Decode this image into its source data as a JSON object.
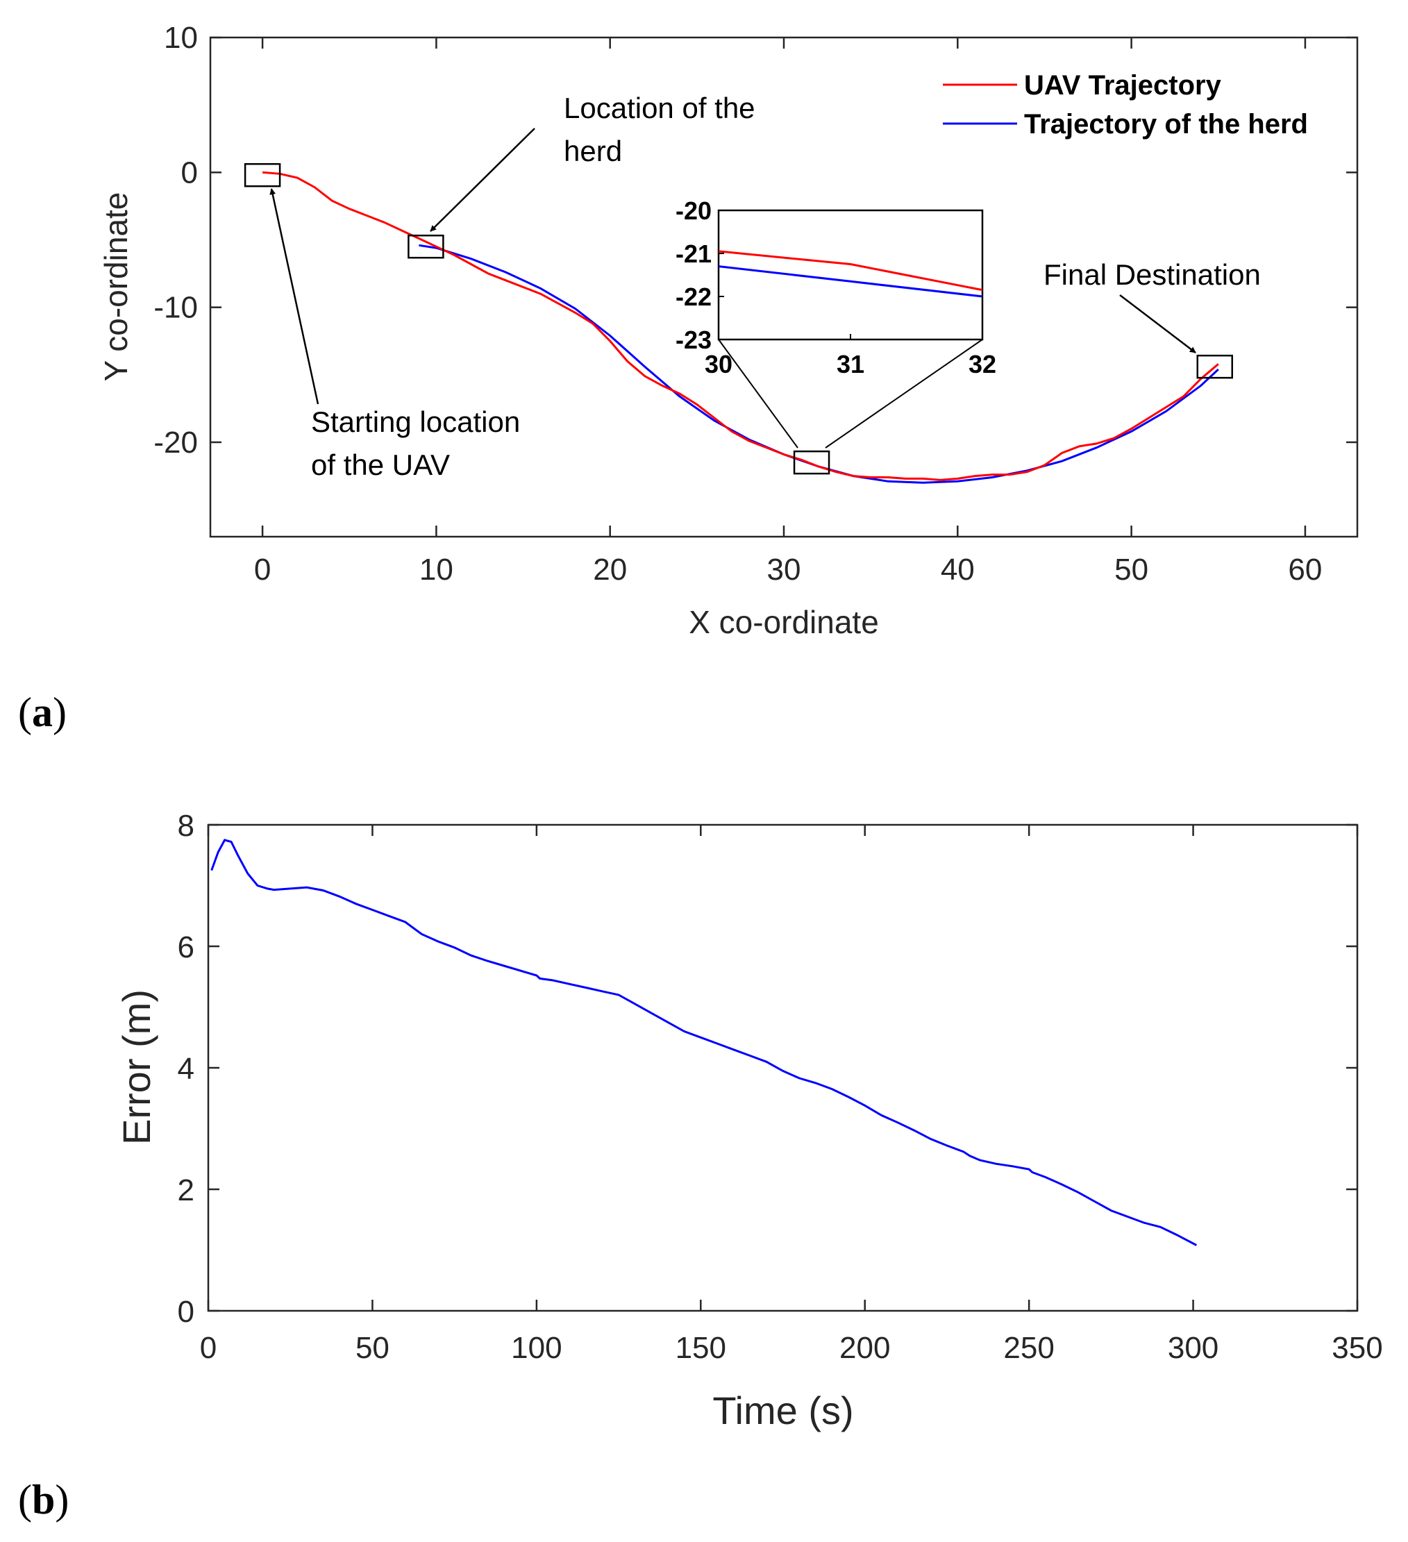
{
  "panels": {
    "a_label": "a",
    "b_label": "b"
  },
  "colors": {
    "uav": "#ff0000",
    "herd": "#0000ff",
    "error": "#0000ff",
    "axis": "#262626"
  },
  "chart_data": [
    {
      "type": "line",
      "panel": "a",
      "xlabel": "X co-ordinate",
      "ylabel": "Y co-ordinate",
      "xlim": [
        -3,
        63
      ],
      "ylim": [
        -27,
        10
      ],
      "xticks": [
        "0",
        "10",
        "20",
        "30",
        "40",
        "50",
        "60"
      ],
      "yticks": [
        "10",
        "0",
        "-10",
        "-20"
      ],
      "legend": {
        "position": "top-right",
        "entries": [
          "UAV Trajectory",
          "Trajectory of the herd"
        ]
      },
      "series": [
        {
          "name": "UAV Trajectory",
          "color": "red",
          "x": [
            0,
            1,
            2,
            3,
            4,
            5,
            6,
            7,
            8,
            9,
            10,
            11,
            12,
            13,
            14,
            15,
            16,
            17,
            18,
            19,
            20,
            21,
            22,
            23,
            24,
            25,
            26,
            27,
            28,
            29,
            30,
            31,
            32,
            33,
            34,
            35,
            36,
            37,
            38,
            39,
            40,
            41,
            42,
            43,
            44,
            45,
            46,
            47,
            48,
            49,
            50,
            51,
            52,
            53,
            54,
            55
          ],
          "y": [
            0,
            -0.1,
            -0.4,
            -1.1,
            -2.1,
            -2.7,
            -3.2,
            -3.7,
            -4.3,
            -4.9,
            -5.5,
            -6.1,
            -6.8,
            -7.5,
            -8.0,
            -8.5,
            -9.0,
            -9.7,
            -10.4,
            -11.2,
            -12.5,
            -14.0,
            -15.1,
            -15.8,
            -16.4,
            -17.2,
            -18.2,
            -19.2,
            -19.9,
            -20.4,
            -20.9,
            -21.3,
            -21.8,
            -22.2,
            -22.5,
            -22.6,
            -22.6,
            -22.7,
            -22.7,
            -22.8,
            -22.7,
            -22.5,
            -22.4,
            -22.4,
            -22.2,
            -21.7,
            -20.8,
            -20.3,
            -20.1,
            -19.7,
            -19.0,
            -18.2,
            -17.4,
            -16.6,
            -15.3,
            -14.2
          ]
        },
        {
          "name": "Trajectory of the herd",
          "color": "blue",
          "x": [
            9,
            10,
            12,
            14,
            16,
            18,
            20,
            22,
            24,
            26,
            28,
            30,
            32,
            34,
            36,
            38,
            40,
            42,
            44,
            46,
            48,
            50,
            52,
            54,
            55
          ],
          "y": [
            -5.4,
            -5.6,
            -6.4,
            -7.4,
            -8.6,
            -10.1,
            -12.1,
            -14.4,
            -16.6,
            -18.4,
            -19.8,
            -20.9,
            -21.8,
            -22.5,
            -22.9,
            -23.0,
            -22.9,
            -22.6,
            -22.1,
            -21.4,
            -20.4,
            -19.2,
            -17.7,
            -15.8,
            -14.6
          ]
        }
      ],
      "markers": [
        {
          "x": 0,
          "y": -0.2
        },
        {
          "x": 9.4,
          "y": -5.5
        },
        {
          "x": 31.6,
          "y": -21.5
        },
        {
          "x": 54.8,
          "y": -14.4
        }
      ],
      "annotations": {
        "herd_location": {
          "line1": "Location of the",
          "line2": "herd"
        },
        "start_location": {
          "line1": "Starting location",
          "line2": "of the UAV"
        },
        "final_destination": "Final Destination"
      },
      "inset": {
        "xlim": [
          30,
          32
        ],
        "ylim": [
          -23,
          -20
        ],
        "xticks": [
          "30",
          "31",
          "32"
        ],
        "yticks": [
          "-20",
          "-21",
          "-22",
          "-23"
        ],
        "series": [
          {
            "name": "UAV Trajectory",
            "x": [
              30,
              31,
              32
            ],
            "y": [
              -20.95,
              -21.25,
              -21.85
            ]
          },
          {
            "name": "Trajectory of the herd",
            "x": [
              30,
              31,
              32
            ],
            "y": [
              -21.3,
              -21.65,
              -22.0
            ]
          }
        ]
      }
    },
    {
      "type": "line",
      "panel": "b",
      "xlabel": "Time (s)",
      "ylabel": "Error (m)",
      "xlim": [
        0,
        350
      ],
      "ylim": [
        0,
        8
      ],
      "xticks": [
        "0",
        "50",
        "100",
        "150",
        "200",
        "250",
        "300",
        "350"
      ],
      "yticks": [
        "0",
        "2",
        "4",
        "6",
        "8"
      ],
      "series": [
        {
          "name": "Error",
          "color": "blue",
          "x": [
            1,
            3,
            5,
            7,
            9,
            12,
            15,
            18,
            20,
            25,
            30,
            35,
            40,
            45,
            50,
            55,
            60,
            65,
            70,
            75,
            80,
            85,
            90,
            95,
            100,
            101,
            105,
            110,
            115,
            120,
            125,
            130,
            135,
            140,
            145,
            150,
            155,
            160,
            165,
            170,
            175,
            180,
            185,
            190,
            195,
            200,
            205,
            210,
            215,
            220,
            225,
            230,
            232,
            235,
            240,
            245,
            250,
            251,
            255,
            260,
            265,
            270,
            275,
            280,
            285,
            290,
            295,
            301
          ],
          "y": [
            7.25,
            7.55,
            7.75,
            7.72,
            7.5,
            7.2,
            7.0,
            6.95,
            6.93,
            6.95,
            6.97,
            6.92,
            6.82,
            6.7,
            6.6,
            6.5,
            6.4,
            6.2,
            6.08,
            5.98,
            5.85,
            5.76,
            5.68,
            5.6,
            5.52,
            5.47,
            5.44,
            5.38,
            5.32,
            5.26,
            5.2,
            5.05,
            4.9,
            4.75,
            4.6,
            4.5,
            4.4,
            4.3,
            4.2,
            4.1,
            3.95,
            3.83,
            3.75,
            3.65,
            3.52,
            3.38,
            3.22,
            3.1,
            2.97,
            2.83,
            2.72,
            2.62,
            2.55,
            2.48,
            2.42,
            2.38,
            2.33,
            2.28,
            2.2,
            2.08,
            1.95,
            1.8,
            1.65,
            1.55,
            1.45,
            1.38,
            1.25,
            1.08
          ]
        }
      ]
    }
  ]
}
